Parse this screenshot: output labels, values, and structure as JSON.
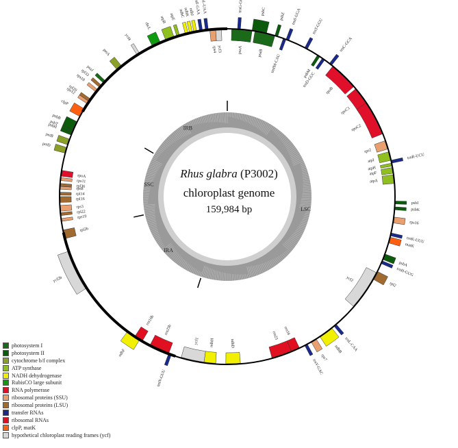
{
  "title": {
    "species": "Rhus glabra",
    "voucher": "(P3002)"
  },
  "subtitle": "chloroplast genome",
  "genome_size": "159,984 bp",
  "regions": [
    {
      "label": "LSC",
      "start": 0,
      "end": 88000
    },
    {
      "label": "IRA",
      "start": 88000,
      "end": 114500
    },
    {
      "label": "SSC",
      "start": 114500,
      "end": 133500
    },
    {
      "label": "IRB",
      "start": 133500,
      "end": 159984
    }
  ],
  "colors": {
    "photosystem_I": "#1a6a1a",
    "photosystem_II": "#0c5a0c",
    "cytochrome": "#8aa028",
    "atp": "#90c020",
    "ndh": "#f0f000",
    "rubisco": "#109a10",
    "rna_pol": "#e0102a",
    "ssu": "#e8a070",
    "lsu": "#a06a30",
    "trna": "#1a2a8a",
    "rrna": "#e01020",
    "clpmat": "#ff6010",
    "ycf": "#d8d8d8"
  },
  "legend": [
    {
      "label": "photosystem I",
      "color": "#1a6a1a"
    },
    {
      "label": "photosystem II",
      "color": "#0c5a0c"
    },
    {
      "label": "cytochrome b/f complex",
      "color": "#8aa028"
    },
    {
      "label": "ATP synthase",
      "color": "#90c020"
    },
    {
      "label": "NADH dehydrogenase",
      "color": "#f0f000"
    },
    {
      "label": "RubisCO large subunit",
      "color": "#109a10"
    },
    {
      "label": "RNA polymerase",
      "color": "#e0102a"
    },
    {
      "label": "ribosomal proteins (SSU)",
      "color": "#e8a070"
    },
    {
      "label": "ribosomal proteins (LSU)",
      "color": "#a06a30"
    },
    {
      "label": "transfer RNAs",
      "color": "#1a2a8a"
    },
    {
      "label": "ribosomal RNAs",
      "color": "#e01020"
    },
    {
      "label": "clpP, matK",
      "color": "#ff6010"
    },
    {
      "label": "hypothetical chloroplast reading frames (ycf)",
      "color": "#d8d8d8"
    }
  ],
  "genes": [
    {
      "name": "psaA",
      "deg": 5,
      "span": 7,
      "side": "in",
      "cat": "photosystem_I"
    },
    {
      "name": "psaB",
      "deg": 13,
      "span": 7,
      "side": "in",
      "cat": "photosystem_I"
    },
    {
      "name": "trnfM-CAU",
      "deg": 20,
      "span": 1,
      "side": "in",
      "cat": "trna"
    },
    {
      "name": "psbC",
      "deg": 11,
      "span": 5,
      "side": "out",
      "cat": "photosystem_II"
    },
    {
      "name": "psbZ",
      "deg": 17,
      "span": 1,
      "side": "out",
      "cat": "photosystem_II"
    },
    {
      "name": "trnS-UGA",
      "deg": 21,
      "span": 1,
      "side": "out",
      "cat": "trna"
    },
    {
      "name": "trnG-GCC",
      "deg": 4,
      "span": 1,
      "side": "out",
      "cat": "trna"
    },
    {
      "name": "trnT-GGU",
      "deg": 28,
      "span": 1,
      "side": "out",
      "cat": "trna"
    },
    {
      "name": "psbM",
      "deg": 33,
      "span": 1,
      "side": "in",
      "cat": "photosystem_II"
    },
    {
      "name": "trnD-GUC",
      "deg": 35,
      "span": 1,
      "side": "in",
      "cat": "trna"
    },
    {
      "name": "trnC-GCA",
      "deg": 38,
      "span": 1,
      "side": "out",
      "cat": "trna"
    },
    {
      "name": "rpoB",
      "deg": 44,
      "span": 10,
      "side": "in",
      "cat": "rna_pol"
    },
    {
      "name": "rpoC1",
      "deg": 54,
      "span": 8,
      "side": "in",
      "cat": "rna_pol"
    },
    {
      "name": "rpoC2",
      "deg": 62,
      "span": 12,
      "side": "in",
      "cat": "rna_pol"
    },
    {
      "name": "rps2",
      "deg": 72,
      "span": 3,
      "side": "in",
      "cat": "ssu"
    },
    {
      "name": "atpI",
      "deg": 76,
      "span": 3,
      "side": "in",
      "cat": "atp"
    },
    {
      "name": "atpH",
      "deg": 79,
      "span": 1,
      "side": "in",
      "cat": "atp"
    },
    {
      "name": "atpF",
      "deg": 81,
      "span": 2,
      "side": "in",
      "cat": "atp"
    },
    {
      "name": "atpA",
      "deg": 84,
      "span": 3,
      "side": "in",
      "cat": "atp"
    },
    {
      "name": "trnR-UCU",
      "deg": 78,
      "span": 1,
      "side": "out",
      "cat": "trna"
    },
    {
      "name": "psbI",
      "deg": 92,
      "span": 1,
      "side": "out",
      "cat": "photosystem_II"
    },
    {
      "name": "psbK",
      "deg": 94,
      "span": 1,
      "side": "out",
      "cat": "photosystem_II"
    },
    {
      "name": "rps16",
      "deg": 98,
      "span": 2,
      "side": "out",
      "cat": "ssu"
    },
    {
      "name": "trnK-UUU",
      "deg": 103,
      "span": 1,
      "side": "out",
      "cat": "trna"
    },
    {
      "name": "matK",
      "deg": 105,
      "span": 2,
      "side": "out",
      "cat": "clpmat"
    },
    {
      "name": "psbA",
      "deg": 111,
      "span": 2,
      "side": "out",
      "cat": "photosystem_II"
    },
    {
      "name": "trnH-GUG",
      "deg": 113,
      "span": 1,
      "side": "out",
      "cat": "trna"
    },
    {
      "name": "rpl2",
      "deg": 118,
      "span": 3,
      "side": "out",
      "cat": "lsu"
    },
    {
      "name": "ycf2",
      "deg": 124,
      "span": 14,
      "side": "in",
      "cat": "ycf"
    },
    {
      "name": "trnL-CAA",
      "deg": 140,
      "span": 1,
      "side": "out",
      "cat": "trna"
    },
    {
      "name": "ndhB",
      "deg": 144,
      "span": 5,
      "side": "out",
      "cat": "ndh"
    },
    {
      "name": "rps7",
      "deg": 149,
      "span": 2,
      "side": "out",
      "cat": "ssu"
    },
    {
      "name": "rrn16",
      "deg": 156,
      "span": 3,
      "side": "in",
      "cat": "rrna"
    },
    {
      "name": "trnV-GAC",
      "deg": 152,
      "span": 1,
      "side": "out",
      "cat": "trna"
    },
    {
      "name": "rrn23",
      "deg": 161,
      "span": 7,
      "side": "in",
      "cat": "rrna"
    },
    {
      "name": "ycf1",
      "deg": 192,
      "span": 8,
      "side": "in",
      "cat": "ycf"
    },
    {
      "name": "ndhF",
      "deg": 214,
      "span": 5,
      "side": "out",
      "cat": "ndh"
    },
    {
      "name": "ndhD",
      "deg": 178,
      "span": 5,
      "side": "in",
      "cat": "ndh"
    },
    {
      "name": "ndhH",
      "deg": 186,
      "span": 4,
      "side": "in",
      "cat": "ndh"
    },
    {
      "name": "trnN-GUU",
      "deg": 200,
      "span": 1,
      "side": "out",
      "cat": "trna"
    },
    {
      "name": "rrn23b",
      "deg": 204,
      "span": 7,
      "side": "in",
      "cat": "rrna"
    },
    {
      "name": "rrn16b",
      "deg": 212,
      "span": 3,
      "side": "in",
      "cat": "rrna"
    },
    {
      "name": "ycf2b",
      "deg": 244,
      "span": 14,
      "side": "out",
      "cat": "ycf"
    },
    {
      "name": "rpl2b",
      "deg": 257,
      "span": 3,
      "side": "in",
      "cat": "lsu"
    },
    {
      "name": "rps19",
      "deg": 262,
      "span": 1,
      "side": "in",
      "cat": "ssu"
    },
    {
      "name": "rpl22",
      "deg": 264,
      "span": 1,
      "side": "in",
      "cat": "lsu"
    },
    {
      "name": "rps3",
      "deg": 266,
      "span": 2,
      "side": "in",
      "cat": "ssu"
    },
    {
      "name": "rpl16",
      "deg": 269,
      "span": 2,
      "side": "in",
      "cat": "lsu"
    },
    {
      "name": "rpl14",
      "deg": 271,
      "span": 1,
      "side": "in",
      "cat": "lsu"
    },
    {
      "name": "rps8",
      "deg": 273,
      "span": 1,
      "side": "in",
      "cat": "ssu"
    },
    {
      "name": "rpl36",
      "deg": 274,
      "span": 1,
      "side": "in",
      "cat": "lsu"
    },
    {
      "name": "rps11",
      "deg": 276,
      "span": 1,
      "side": "in",
      "cat": "ssu"
    },
    {
      "name": "rpoA",
      "deg": 278,
      "span": 2,
      "side": "in",
      "cat": "rna_pol"
    },
    {
      "name": "petD",
      "deg": 286,
      "span": 2,
      "side": "out",
      "cat": "cytochrome"
    },
    {
      "name": "petB",
      "deg": 289,
      "span": 2,
      "side": "out",
      "cat": "cytochrome"
    },
    {
      "name": "psbH",
      "deg": 292,
      "span": 1,
      "side": "out",
      "cat": "photosystem_II"
    },
    {
      "name": "psbT",
      "deg": 293,
      "span": 1,
      "side": "out",
      "cat": "photosystem_II"
    },
    {
      "name": "psbB",
      "deg": 295,
      "span": 3,
      "side": "out",
      "cat": "photosystem_II"
    },
    {
      "name": "clpP",
      "deg": 300,
      "span": 3,
      "side": "out",
      "cat": "clpmat"
    },
    {
      "name": "rps12",
      "deg": 304,
      "span": 1,
      "side": "out",
      "cat": "ssu"
    },
    {
      "name": "rpl20",
      "deg": 305,
      "span": 1,
      "side": "out",
      "cat": "lsu"
    },
    {
      "name": "rps18",
      "deg": 309,
      "span": 1,
      "side": "out",
      "cat": "ssu"
    },
    {
      "name": "rpl33",
      "deg": 311,
      "span": 1,
      "side": "out",
      "cat": "lsu"
    },
    {
      "name": "psaJ",
      "deg": 313,
      "span": 1,
      "side": "out",
      "cat": "photosystem_I"
    },
    {
      "name": "petA",
      "deg": 320,
      "span": 2,
      "side": "out",
      "cat": "cytochrome"
    },
    {
      "name": "ycf4",
      "deg": 328,
      "span": 1,
      "side": "out",
      "cat": "ycf"
    },
    {
      "name": "rbcL",
      "deg": 335,
      "span": 3,
      "side": "out",
      "cat": "rubisco"
    },
    {
      "name": "atpB",
      "deg": 340,
      "span": 3,
      "side": "out",
      "cat": "atp"
    },
    {
      "name": "atpE",
      "deg": 343,
      "span": 1,
      "side": "out",
      "cat": "atp"
    },
    {
      "name": "ndhC",
      "deg": 346,
      "span": 1,
      "side": "out",
      "cat": "ndh"
    },
    {
      "name": "ndhK",
      "deg": 347.5,
      "span": 1,
      "side": "out",
      "cat": "ndh"
    },
    {
      "name": "ndhJ",
      "deg": 349,
      "span": 1,
      "side": "out",
      "cat": "ndh"
    },
    {
      "name": "trnF-GAA",
      "deg": 351,
      "span": 1,
      "side": "out",
      "cat": "trna"
    },
    {
      "name": "trnL-UAA",
      "deg": 353,
      "span": 1,
      "side": "out",
      "cat": "trna"
    },
    {
      "name": "rps4",
      "deg": 355,
      "span": 2,
      "side": "in",
      "cat": "ssu"
    },
    {
      "name": "ycf3",
      "deg": 357,
      "span": 2,
      "side": "in",
      "cat": "ycf"
    }
  ]
}
